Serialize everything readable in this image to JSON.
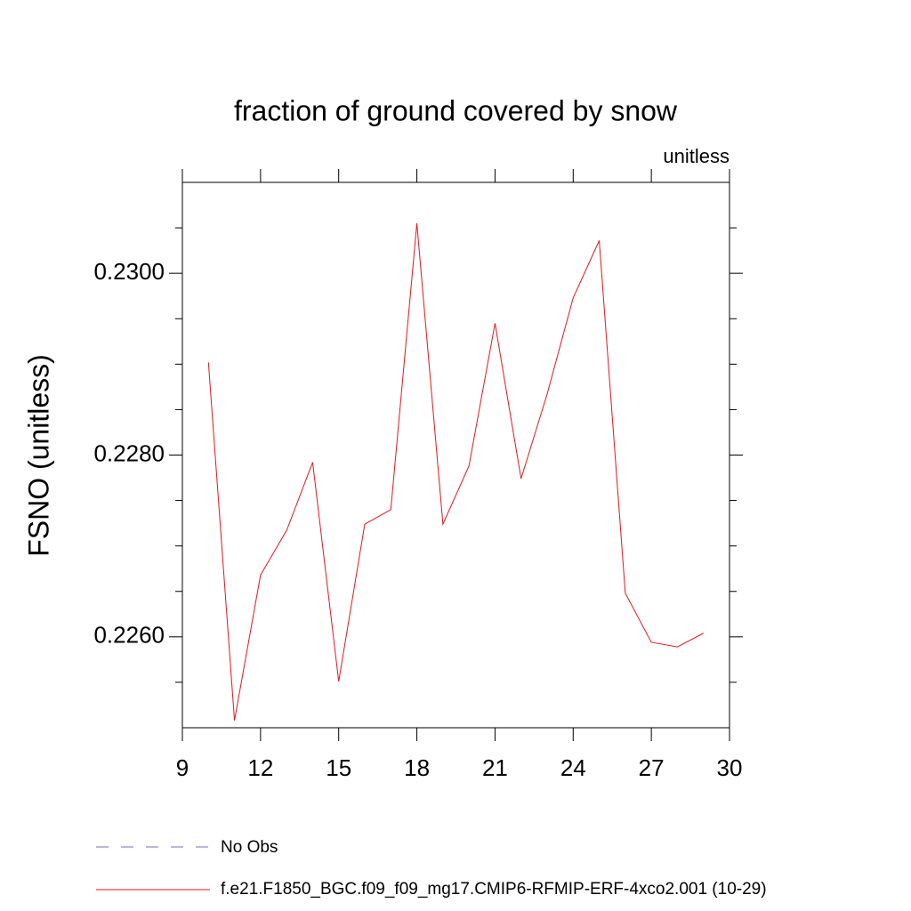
{
  "chart_data": {
    "type": "line",
    "title": "fraction of ground covered by snow",
    "subtitle": "unitless",
    "y_label": "FSNO  (unitless)",
    "x": [
      10,
      11,
      12,
      13,
      14,
      15,
      16,
      17,
      18,
      19,
      20,
      21,
      22,
      23,
      24,
      25,
      26,
      27,
      28,
      29
    ],
    "series": [
      {
        "name": "f.e21.F1850_BGC.f09_f09_mg17.CMIP6-RFMIP-ERF-4xco2.001 (10-29)",
        "color": "#e8141c",
        "values": [
          0.22902,
          0.22508,
          0.22668,
          0.22717,
          0.22792,
          0.22551,
          0.22724,
          0.2274,
          0.23055,
          0.22724,
          0.22788,
          0.22945,
          0.22774,
          0.22867,
          0.22973,
          0.23036,
          0.22648,
          0.22594,
          0.22589,
          0.22604
        ]
      }
    ],
    "legend_extra": {
      "name": "No Obs",
      "color": "#7a6cb0",
      "dashed": true
    },
    "xlim": [
      9,
      30
    ],
    "xticks": [
      9,
      12,
      15,
      18,
      21,
      24,
      27,
      30
    ],
    "ylim": [
      0.225,
      0.231
    ],
    "yticks": [
      {
        "value": 0.226,
        "label": "0.2260"
      },
      {
        "value": 0.228,
        "label": "0.2280"
      },
      {
        "value": 0.23,
        "label": "0.2300"
      }
    ],
    "yminorticks": [
      0.2255,
      0.2265,
      0.227,
      0.2275,
      0.2285,
      0.229,
      0.2295,
      0.2305
    ]
  }
}
